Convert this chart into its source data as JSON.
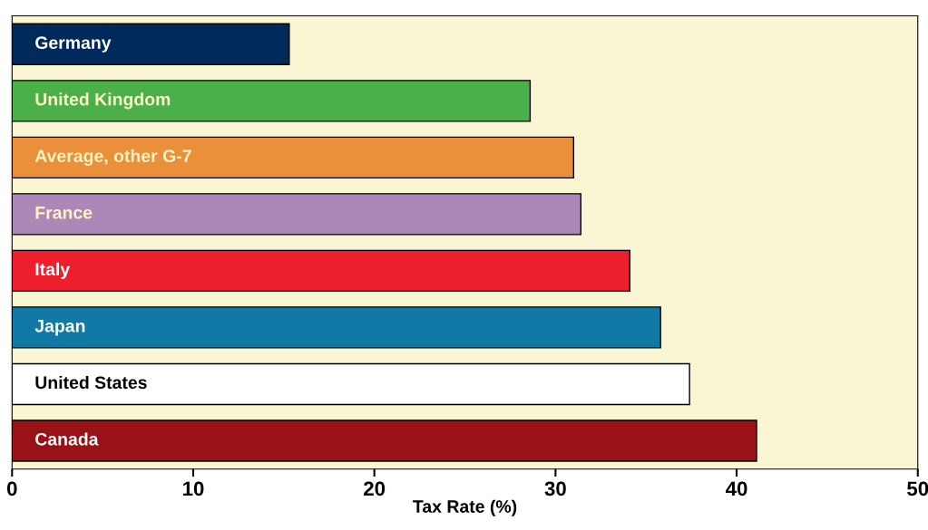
{
  "chart_data": {
    "type": "bar",
    "orientation": "horizontal",
    "xlabel": "Tax Rate (%)",
    "categories": [
      "Germany",
      "United Kingdom",
      "Average, other G-7",
      "France",
      "Italy",
      "Japan",
      "United States",
      "Canada"
    ],
    "values": [
      15.3,
      28.6,
      31.0,
      31.4,
      34.1,
      35.8,
      37.4,
      41.1
    ],
    "colors": [
      "#002a5c",
      "#4bb04a",
      "#ea8f3a",
      "#ab88b8",
      "#ee1f2d",
      "#1079a6",
      "#ffffff",
      "#9a1118"
    ],
    "xlim": [
      0,
      50
    ],
    "xticks": [
      0,
      10,
      20,
      30,
      40,
      50
    ],
    "grid": false,
    "legend": false
  }
}
